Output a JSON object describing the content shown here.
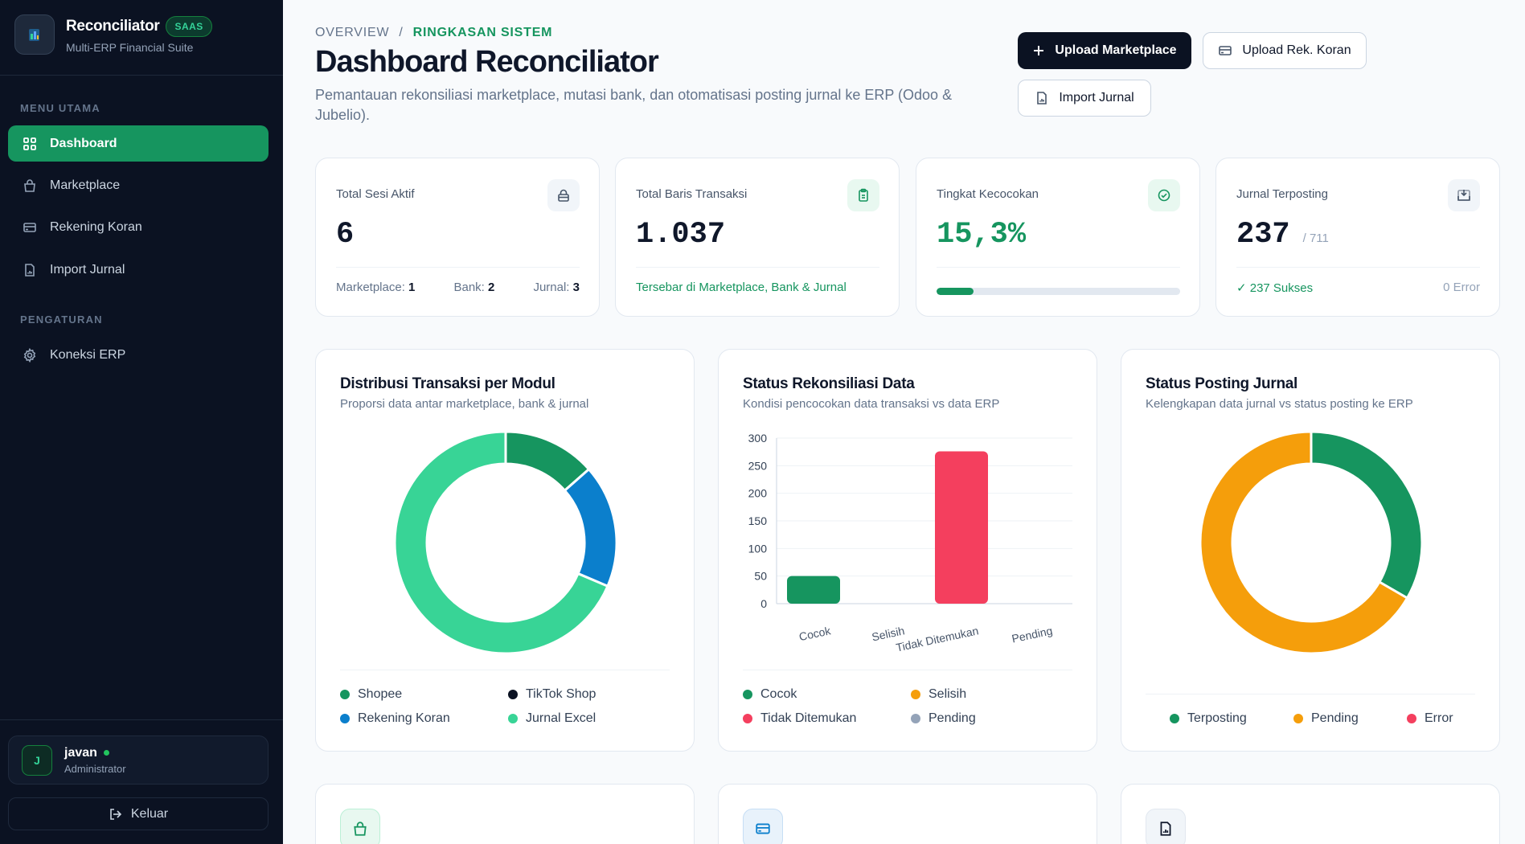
{
  "sidebar": {
    "brand_name": "Reconciliator",
    "brand_badge": "SAAS",
    "brand_sub": "Multi-ERP Financial Suite",
    "section_main": "MENU UTAMA",
    "section_settings": "PENGATURAN",
    "items": [
      {
        "label": "Dashboard",
        "icon": "grid-icon",
        "active": true
      },
      {
        "label": "Marketplace",
        "icon": "shopping-bag-icon"
      },
      {
        "label": "Rekening Koran",
        "icon": "credit-card-icon"
      },
      {
        "label": "Import Jurnal",
        "icon": "file-icon"
      },
      {
        "label": "Koneksi ERP",
        "icon": "gear-icon"
      }
    ],
    "user": {
      "initial": "J",
      "name": "javan",
      "role": "Administrator"
    },
    "logout_label": "Keluar"
  },
  "header": {
    "breadcrumb_root": "OVERVIEW",
    "breadcrumb_sep": "/",
    "breadcrumb_current": "RINGKASAN SISTEM",
    "title": "Dashboard Reconciliator",
    "description": "Pemantauan rekonsiliasi marketplace, mutasi bank, dan otomatisasi posting jurnal ke ERP (Odoo & Jubelio)."
  },
  "actions": {
    "upload_marketplace": "Upload Marketplace",
    "upload_rek_koran": "Upload Rek. Koran",
    "import_jurnal": "Import Jurnal"
  },
  "stats": {
    "sessions": {
      "label": "Total Sesi Aktif",
      "value": "6",
      "marketplace_label": "Marketplace:",
      "marketplace_value": "1",
      "bank_label": "Bank:",
      "bank_value": "2",
      "jurnal_label": "Jurnal:",
      "jurnal_value": "3"
    },
    "rows": {
      "label": "Total Baris Transaksi",
      "value": "1.037",
      "foot": "Tersebar di Marketplace, Bank & Jurnal"
    },
    "match": {
      "label": "Tingkat Kecocokan",
      "value": "15,3%",
      "progress": 15.3
    },
    "posted": {
      "label": "Jurnal Terposting",
      "value": "237",
      "of": "/ 711",
      "success": "✓ 237 Sukses",
      "error": "0 Error"
    }
  },
  "charts": {
    "distribution": {
      "title": "Distribusi Transaksi per Modul",
      "subtitle": "Proporsi data antar marketplace, bank & jurnal"
    },
    "reconciliation": {
      "title": "Status Rekonsiliasi Data",
      "subtitle": "Kondisi pencocokan data transaksi vs data ERP"
    },
    "posting": {
      "title": "Status Posting Jurnal",
      "subtitle": "Kelengkapan data jurnal vs status posting ke ERP"
    }
  },
  "chart_data": [
    {
      "type": "pie",
      "donut": true,
      "categories": [
        "Shopee",
        "TikTok Shop",
        "Rekening Koran",
        "Jurnal Excel"
      ],
      "values": [
        140,
        0,
        186,
        711
      ],
      "colors": [
        "#16955f",
        "#0b1222",
        "#0b7fcc",
        "#38d496"
      ],
      "legend_position": "bottom"
    },
    {
      "type": "bar",
      "categories": [
        "Cocok",
        "Selisih",
        "Tidak Ditemukan",
        "Pending"
      ],
      "values": [
        50,
        0,
        276,
        0
      ],
      "colors": [
        "#16955f",
        "#f59e0b",
        "#f43f5e",
        "#94a3b8"
      ],
      "yticks": [
        0,
        50,
        100,
        150,
        200,
        250,
        300
      ],
      "ylim": [
        0,
        300
      ],
      "grid": true,
      "legend_position": "bottom"
    },
    {
      "type": "pie",
      "donut": true,
      "categories": [
        "Terposting",
        "Pending",
        "Error"
      ],
      "values": [
        237,
        474,
        0
      ],
      "colors": [
        "#16955f",
        "#f59e0b",
        "#f43f5e"
      ],
      "legend_position": "bottom"
    }
  ]
}
